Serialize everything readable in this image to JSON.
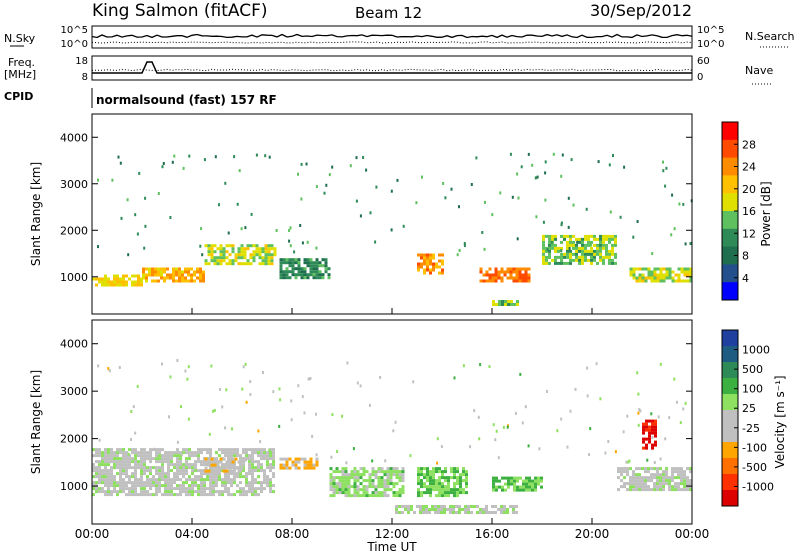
{
  "header": {
    "station": "King Salmon (fitACF)",
    "beam": "Beam 12",
    "date": "30/Sep/2012"
  },
  "panels": {
    "nsky_label": "N.Sky",
    "nsky_top_tick": "10^5",
    "nsky_bottom_tick": "10^0",
    "nsearch_label": "N.Search",
    "nsearch_top_tick": "10^5",
    "nsearch_bottom_tick": "10^0",
    "freq_label_line1": "Freq.",
    "freq_label_line2": "[MHz]",
    "freq_top_tick": "18",
    "freq_bottom_tick": "8",
    "nave_label": "Nave",
    "nave_top_tick": "60",
    "nave_bottom_tick": "0",
    "cpid_label": "CPID",
    "cpid_text": "normalsound (fast) 157 RF"
  },
  "power_panel": {
    "ylabel": "Slant Range [km]",
    "colorbar_label": "Power [dB]",
    "colorbar_ticks": [
      "28",
      "24",
      "20",
      "16",
      "12",
      "8",
      "4"
    ],
    "colorbar_colors": [
      "#ff0000",
      "#ff4a00",
      "#ff8c00",
      "#ffc000",
      "#e0e000",
      "#5ec05e",
      "#2e8b57",
      "#1f6e4e",
      "#234f8c",
      "#0000ff"
    ]
  },
  "velocity_panel": {
    "ylabel": "Slant Range [km]",
    "colorbar_label": "Velocity [m s⁻¹]",
    "colorbar_ticks": [
      "1000",
      "500",
      "100",
      "25",
      "-25",
      "-100",
      "-500",
      "-1000"
    ],
    "colorbar_colors": [
      "#2040a0",
      "#1f5c82",
      "#2e8b57",
      "#3cb041",
      "#8de060",
      "#c0c0c0",
      "#c0c0c0",
      "#ffa500",
      "#ff7000",
      "#ff3000",
      "#dd0000"
    ]
  },
  "y_ticks": [
    "4000",
    "3000",
    "2000",
    "1000"
  ],
  "x_axis": {
    "label": "Time UT",
    "ticks": [
      "00:00",
      "04:00",
      "08:00",
      "12:00",
      "16:00",
      "20:00",
      "00:00"
    ]
  },
  "chart_data": [
    {
      "type": "heatmap",
      "title": "Power [dB]",
      "xlabel": "",
      "ylabel": "Slant Range [km]",
      "x_range_hours": [
        0,
        24
      ],
      "ylim": [
        200,
        4500
      ],
      "color_scale": [
        0,
        30
      ],
      "bands": [
        {
          "x_start": 0.0,
          "x_end": 2.0,
          "y_low": 850,
          "y_high": 1050,
          "value": 18
        },
        {
          "x_start": 2.0,
          "x_end": 4.5,
          "y_low": 900,
          "y_high": 1200,
          "value": 20
        },
        {
          "x_start": 4.5,
          "x_end": 7.3,
          "y_low": 1300,
          "y_high": 1700,
          "value": 16
        },
        {
          "x_start": 7.5,
          "x_end": 9.5,
          "y_low": 950,
          "y_high": 1400,
          "value": 10
        },
        {
          "x_start": 13.0,
          "x_end": 14.0,
          "y_low": 1100,
          "y_high": 1500,
          "value": 22
        },
        {
          "x_start": 15.5,
          "x_end": 17.5,
          "y_low": 900,
          "y_high": 1200,
          "value": 24
        },
        {
          "x_start": 16.0,
          "x_end": 17.0,
          "y_low": 400,
          "y_high": 500,
          "value": 14
        },
        {
          "x_start": 18.0,
          "x_end": 21.0,
          "y_low": 1300,
          "y_high": 1900,
          "value": 14
        },
        {
          "x_start": 21.5,
          "x_end": 24.0,
          "y_low": 900,
          "y_high": 1200,
          "value": 16
        }
      ]
    },
    {
      "type": "heatmap",
      "title": "Velocity [m s⁻¹]",
      "xlabel": "Time UT",
      "ylabel": "Slant Range [km]",
      "x_range_hours": [
        0,
        24
      ],
      "ylim": [
        200,
        4500
      ],
      "color_scale": [
        -1000,
        1000
      ],
      "bands": [
        {
          "x_start": 0.0,
          "x_end": 7.3,
          "y_low": 800,
          "y_high": 1800,
          "value": 0
        },
        {
          "x_start": 4.5,
          "x_end": 6.0,
          "y_low": 1300,
          "y_high": 1600,
          "value": -200
        },
        {
          "x_start": 7.5,
          "x_end": 9.0,
          "y_low": 1400,
          "y_high": 1600,
          "value": -300
        },
        {
          "x_start": 9.5,
          "x_end": 12.5,
          "y_low": 800,
          "y_high": 1400,
          "value": 150
        },
        {
          "x_start": 13.0,
          "x_end": 15.0,
          "y_low": 800,
          "y_high": 1400,
          "value": 250
        },
        {
          "x_start": 16.0,
          "x_end": 18.0,
          "y_low": 900,
          "y_high": 1200,
          "value": 300
        },
        {
          "x_start": 12.0,
          "x_end": 17.0,
          "y_low": 450,
          "y_high": 600,
          "value": 80
        },
        {
          "x_start": 21.0,
          "x_end": 24.0,
          "y_low": 900,
          "y_high": 1400,
          "value": 0
        },
        {
          "x_start": 22.0,
          "x_end": 22.5,
          "y_low": 1800,
          "y_high": 2400,
          "value": -900
        }
      ]
    }
  ]
}
